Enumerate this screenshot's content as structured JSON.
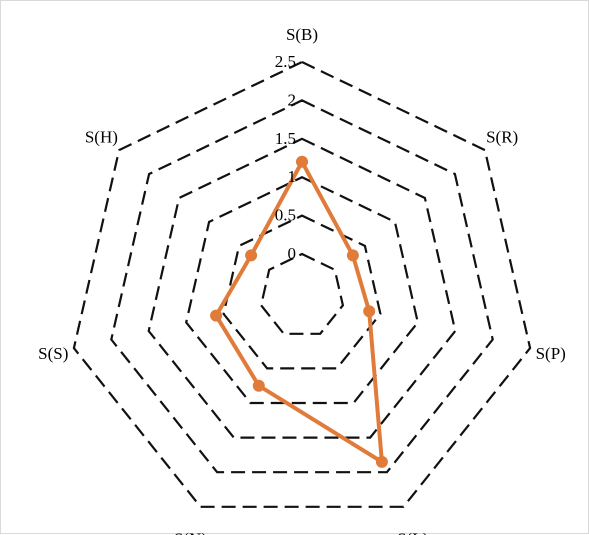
{
  "chart_data": {
    "type": "radar",
    "categories": [
      "S(B)",
      "S(R)",
      "S(P)",
      "S(L)",
      "S(N)",
      "S(S)",
      "S(H)"
    ],
    "ticks": [
      "0",
      "0.5",
      "1",
      "1.5",
      "2",
      "2.5"
    ],
    "rlim": [
      0,
      2.5
    ],
    "grid": true,
    "legend": "none",
    "series": [
      {
        "values": [
          1.2,
          0.3,
          0.35,
          1.85,
          0.75,
          0.6,
          0.3
        ],
        "color": "#e07b39"
      }
    ],
    "gridline_style": "dashed",
    "gridline_color": "#111111"
  }
}
